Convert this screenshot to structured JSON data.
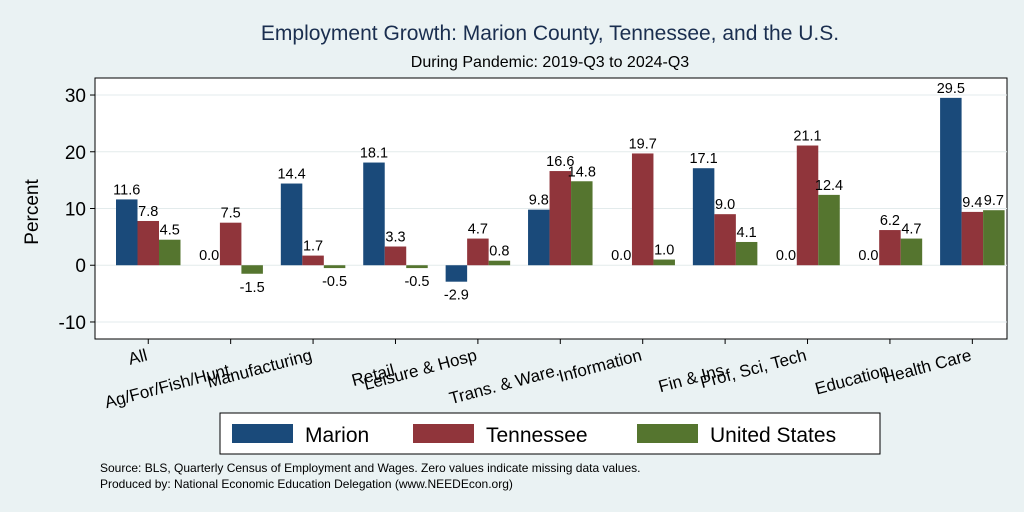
{
  "chart_data": {
    "type": "bar",
    "title": "Employment Growth: Marion County, Tennessee, and the U.S.",
    "subtitle": "During Pandemic: 2019-Q3 to 2024-Q3",
    "ylabel": "Percent",
    "xlabel": "",
    "ylim": [
      -13,
      33
    ],
    "yticks": [
      -10,
      0,
      10,
      20,
      30
    ],
    "ytick_labels": [
      "-10",
      "0",
      "10",
      "20",
      "30"
    ],
    "grid": true,
    "legend_position": "bottom",
    "categories": [
      "All",
      "Ag/For/Fish/Hunt",
      "Manufacturing",
      "Retail",
      "Leisure & Hosp",
      "Trans. & Ware.",
      "Information",
      "Fin & Ins",
      "Prof, Sci, Tech",
      "Education",
      "Health Care"
    ],
    "series": [
      {
        "name": "Marion",
        "color": "#1a4a7a",
        "values": [
          11.6,
          0.0,
          14.4,
          18.1,
          -2.9,
          9.8,
          0.0,
          17.1,
          0.0,
          0.0,
          29.5
        ]
      },
      {
        "name": "Tennessee",
        "color": "#90353b",
        "values": [
          7.8,
          7.5,
          1.7,
          3.3,
          4.7,
          16.6,
          19.7,
          9.0,
          21.1,
          6.2,
          9.4
        ]
      },
      {
        "name": "United States",
        "color": "#55752f",
        "values": [
          4.5,
          -1.5,
          -0.5,
          -0.5,
          0.8,
          14.8,
          1.0,
          4.1,
          12.4,
          4.7,
          9.7
        ]
      }
    ],
    "value_labels": [
      [
        "11.6",
        "0.0",
        "14.4",
        "18.1",
        "-2.9",
        "9.8",
        "0.0",
        "17.1",
        "0.0",
        "0.0",
        "29.5"
      ],
      [
        "7.8",
        "7.5",
        "1.7",
        "3.3",
        "4.7",
        "16.6",
        "19.7",
        "9.0",
        "21.1",
        "6.2",
        "9.4"
      ],
      [
        "4.5",
        "-1.5",
        "-0.5",
        "-0.5",
        "0.8",
        "14.8",
        "1.0",
        "4.1",
        "12.4",
        "4.7",
        "9.7"
      ]
    ],
    "source_note": "Source: BLS, Quarterly Census of Employment and Wages. Zero values indicate missing data values.",
    "produced_by": "Produced by: National Economic Education Delegation (www.NEEDEcon.org)"
  }
}
